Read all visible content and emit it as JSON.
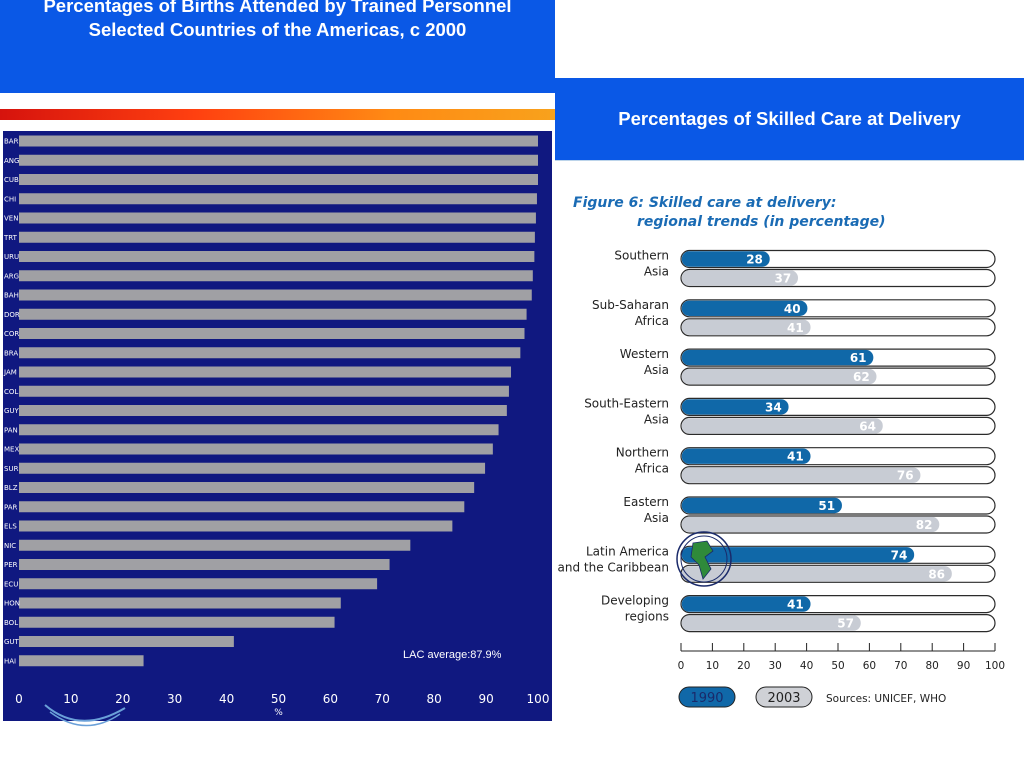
{
  "left_header": {
    "title": "Percentages of  Births Attended by Trained Personnel Selected Countries of the Americas, c 2000"
  },
  "right_header": {
    "title": "Percentages of Skilled Care at Delivery"
  },
  "colors": {
    "left_panel_bg": "#101880",
    "left_bar": "#a0a0a4",
    "header_blue": "#0a58e6",
    "bar_1990": "#1068a8",
    "bar_2003": "#c8ccd4"
  },
  "chart_data": [
    {
      "type": "bar",
      "orientation": "horizontal",
      "title": "Percentages of  Births Attended by Trained Personnel Selected Countries of the Americas, c 2000",
      "categories": [
        "BAR",
        "ANG",
        "CUB",
        "CHI",
        "VEN",
        "TRT",
        "URU",
        "ARG",
        "BAH",
        "DOR",
        "COR",
        "BRA",
        "JAM",
        "COL",
        "GUY",
        "PAN",
        "MEX",
        "SUR",
        "BLZ",
        "PAR",
        "ELS",
        "NIC",
        "PER",
        "ECU",
        "HON",
        "BOL",
        "GUT",
        "HAI"
      ],
      "values": [
        100,
        100,
        100,
        99.8,
        99.6,
        99.4,
        99.3,
        99,
        98.8,
        97.8,
        97.4,
        96.6,
        94.8,
        94.4,
        94,
        92.4,
        91.3,
        89.8,
        87.7,
        85.8,
        83.5,
        75.4,
        71.4,
        69,
        62,
        60.8,
        41.4,
        24
      ],
      "xlabel": "%",
      "xticks": [
        0,
        10,
        20,
        30,
        40,
        50,
        60,
        70,
        80,
        90,
        100
      ],
      "xlim": [
        0,
        100
      ],
      "annotation": "LAC average:87.9%"
    },
    {
      "type": "bar",
      "orientation": "horizontal",
      "title": "Figure 6: Skilled care at delivery:",
      "subtitle": "regional trends (in percentage)",
      "categories": [
        [
          "Southern",
          "Asia"
        ],
        [
          "Sub-Saharan",
          "Africa"
        ],
        [
          "Western",
          "Asia"
        ],
        [
          "South-Eastern",
          "Asia"
        ],
        [
          "Northern",
          "Africa"
        ],
        [
          "Eastern",
          "Asia"
        ],
        [
          "Latin America",
          "and the Caribbean"
        ],
        [
          "Developing",
          "regions"
        ]
      ],
      "series": [
        {
          "name": "1990",
          "values": [
            28,
            40,
            61,
            34,
            41,
            51,
            74,
            41
          ]
        },
        {
          "name": "2003",
          "values": [
            37,
            41,
            62,
            64,
            76,
            82,
            86,
            57
          ]
        }
      ],
      "xticks": [
        0,
        10,
        20,
        30,
        40,
        50,
        60,
        70,
        80,
        90,
        100
      ],
      "xlim": [
        0,
        100
      ],
      "source": "Sources: UNICEF, WHO"
    }
  ]
}
